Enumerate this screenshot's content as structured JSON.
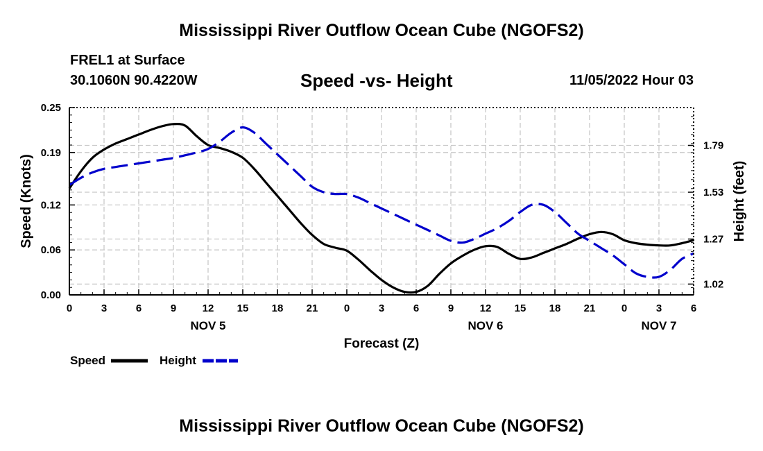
{
  "page": {
    "title": "Mississippi River Outflow Ocean Cube (NGOFS2)",
    "station_name": "FREL1 at Surface",
    "coordinates": "30.1060N  90.4220W",
    "chart_subtitle": "Speed -vs- Height",
    "timestamp": "11/05/2022 Hour 03",
    "footer_title": "Mississippi River Outflow Ocean Cube (NGOFS2)"
  },
  "legend": {
    "speed_label": "Speed",
    "height_label": "Height"
  },
  "chart_data": {
    "type": "line",
    "title": "Speed -vs- Height",
    "xlabel": "Forecast (Z)",
    "ylabel_left": "Speed (Knots)",
    "ylabel_right": "Height (feet)",
    "x_range": [
      0,
      54
    ],
    "x_ticks": [
      0,
      3,
      6,
      9,
      12,
      15,
      18,
      21,
      24,
      27,
      30,
      33,
      36,
      39,
      42,
      45,
      48,
      51,
      54
    ],
    "x_tick_labels": [
      "0",
      "3",
      "6",
      "9",
      "12",
      "15",
      "18",
      "21",
      "0",
      "3",
      "6",
      "9",
      "12",
      "15",
      "18",
      "21",
      "0",
      "3",
      "6"
    ],
    "date_labels": [
      {
        "x": 12,
        "label": "NOV 5"
      },
      {
        "x": 36,
        "label": "NOV 6"
      },
      {
        "x": 51,
        "label": "NOV 7"
      }
    ],
    "y_left_range": [
      0,
      0.25
    ],
    "y_left_ticks": [
      0.0,
      0.06,
      0.12,
      0.19,
      0.25
    ],
    "y_left_tick_labels": [
      "0.00",
      "0.06",
      "0.12",
      "0.19",
      "0.25"
    ],
    "y_right_range": [
      0.96,
      2.0
    ],
    "y_right_ticks": [
      1.02,
      1.27,
      1.53,
      1.79
    ],
    "y_right_tick_labels": [
      "1.02",
      "1.27",
      "1.53",
      "1.79"
    ],
    "grid": true,
    "series": [
      {
        "name": "Speed",
        "axis": "left",
        "color": "#000000",
        "dash": "solid",
        "x": [
          0,
          1,
          2,
          3,
          4,
          5,
          6,
          7,
          8,
          9,
          10,
          11,
          12,
          13,
          14,
          15,
          16,
          17,
          18,
          19,
          20,
          21,
          22,
          23,
          24,
          25,
          26,
          27,
          28,
          29,
          30,
          31,
          32,
          33,
          34,
          35,
          36,
          37,
          38,
          39,
          40,
          41,
          42,
          43,
          44,
          45,
          46,
          47,
          48,
          49,
          50,
          51,
          52,
          53,
          54
        ],
        "values": [
          0.142,
          0.165,
          0.183,
          0.194,
          0.202,
          0.208,
          0.214,
          0.22,
          0.225,
          0.228,
          0.226,
          0.212,
          0.2,
          0.196,
          0.191,
          0.183,
          0.168,
          0.15,
          0.132,
          0.114,
          0.096,
          0.08,
          0.068,
          0.063,
          0.059,
          0.047,
          0.033,
          0.02,
          0.01,
          0.004,
          0.004,
          0.012,
          0.028,
          0.042,
          0.052,
          0.06,
          0.065,
          0.064,
          0.055,
          0.048,
          0.05,
          0.056,
          0.062,
          0.068,
          0.075,
          0.081,
          0.084,
          0.081,
          0.073,
          0.069,
          0.067,
          0.066,
          0.066,
          0.069,
          0.073
        ]
      },
      {
        "name": "Height",
        "axis": "right",
        "color": "#0000cc",
        "dash": "dashed",
        "x": [
          0,
          1,
          2,
          3,
          4,
          5,
          6,
          7,
          8,
          9,
          10,
          11,
          12,
          13,
          14,
          15,
          16,
          17,
          18,
          19,
          20,
          21,
          22,
          23,
          24,
          25,
          26,
          27,
          28,
          29,
          30,
          31,
          32,
          33,
          34,
          35,
          36,
          37,
          38,
          39,
          40,
          41,
          42,
          43,
          44,
          45,
          46,
          47,
          48,
          49,
          50,
          51,
          52,
          53,
          54
        ],
        "values": [
          1.57,
          1.61,
          1.64,
          1.66,
          1.67,
          1.68,
          1.69,
          1.7,
          1.71,
          1.72,
          1.735,
          1.75,
          1.77,
          1.81,
          1.86,
          1.89,
          1.86,
          1.8,
          1.74,
          1.68,
          1.62,
          1.56,
          1.53,
          1.52,
          1.52,
          1.5,
          1.47,
          1.44,
          1.41,
          1.38,
          1.35,
          1.32,
          1.29,
          1.26,
          1.25,
          1.27,
          1.3,
          1.33,
          1.37,
          1.42,
          1.46,
          1.46,
          1.42,
          1.36,
          1.3,
          1.26,
          1.22,
          1.18,
          1.13,
          1.08,
          1.06,
          1.06,
          1.1,
          1.16,
          1.19
        ]
      }
    ]
  }
}
